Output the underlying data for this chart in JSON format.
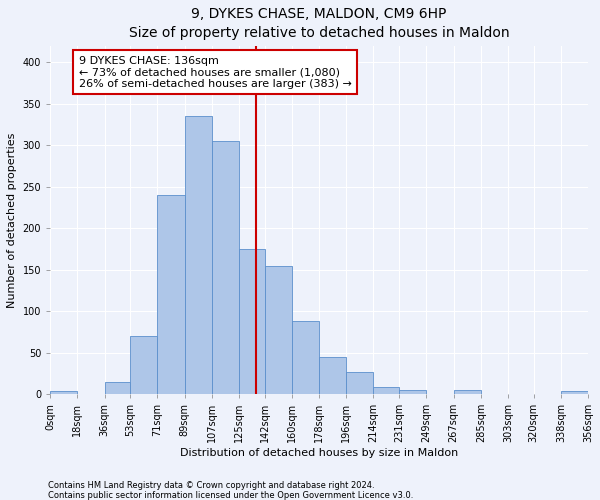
{
  "title": "9, DYKES CHASE, MALDON, CM9 6HP",
  "subtitle": "Size of property relative to detached houses in Maldon",
  "xlabel": "Distribution of detached houses by size in Maldon",
  "ylabel": "Number of detached properties",
  "bar_edges": [
    0,
    18,
    36,
    53,
    71,
    89,
    107,
    125,
    142,
    160,
    178,
    196,
    214,
    231,
    249,
    267,
    285,
    303,
    320,
    338,
    356
  ],
  "bar_heights": [
    4,
    0,
    14,
    70,
    240,
    335,
    305,
    175,
    155,
    88,
    45,
    27,
    8,
    5,
    0,
    5,
    0,
    0,
    0,
    4
  ],
  "bar_color": "#aec6e8",
  "bar_edge_color": "#5b8fcc",
  "property_size": 136,
  "vline_color": "#cc0000",
  "annotation_box_color": "#cc0000",
  "annotation_text_line1": "9 DYKES CHASE: 136sqm",
  "annotation_text_line2": "← 73% of detached houses are smaller (1,080)",
  "annotation_text_line3": "26% of semi-detached houses are larger (383) →",
  "ylim": [
    0,
    420
  ],
  "yticks": [
    0,
    50,
    100,
    150,
    200,
    250,
    300,
    350,
    400
  ],
  "tick_labels": [
    "0sqm",
    "18sqm",
    "36sqm",
    "53sqm",
    "71sqm",
    "89sqm",
    "107sqm",
    "125sqm",
    "142sqm",
    "160sqm",
    "178sqm",
    "196sqm",
    "214sqm",
    "231sqm",
    "249sqm",
    "267sqm",
    "285sqm",
    "303sqm",
    "320sqm",
    "338sqm",
    "356sqm"
  ],
  "footnote1": "Contains HM Land Registry data © Crown copyright and database right 2024.",
  "footnote2": "Contains public sector information licensed under the Open Government Licence v3.0.",
  "background_color": "#eef2fb",
  "plot_bg_color": "#eef2fb",
  "grid_color": "#ffffff",
  "title_fontsize": 10,
  "axis_label_fontsize": 8,
  "tick_fontsize": 7,
  "annotation_fontsize": 8,
  "footnote_fontsize": 6
}
